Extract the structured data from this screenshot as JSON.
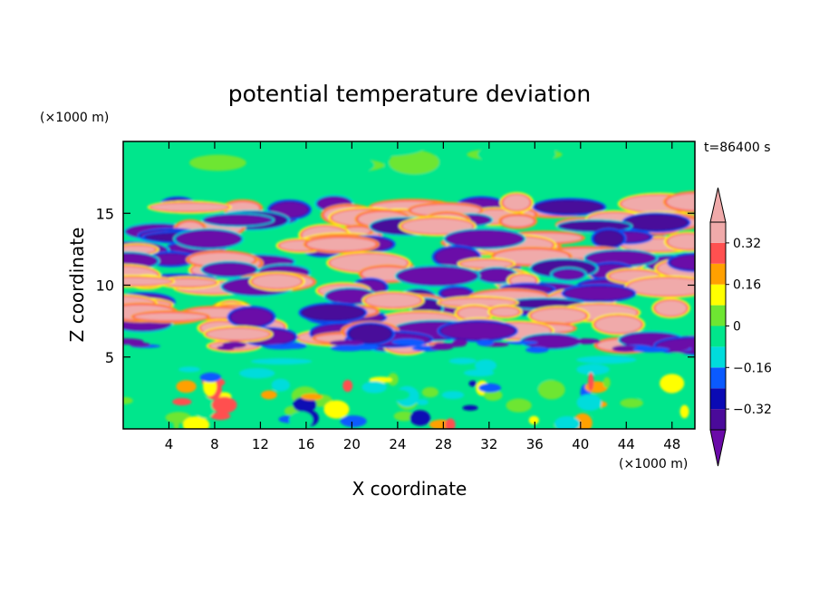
{
  "chart_data": {
    "type": "heatmap",
    "title": "potential temperature deviation",
    "xlabel": "X coordinate",
    "ylabel": "Z coordinate",
    "x_unit": "(×1000 m)",
    "y_unit": "(×1000 m)",
    "time_label": "t=86400 s",
    "xlim": [
      0,
      50
    ],
    "ylim": [
      0,
      20
    ],
    "x_ticks": [
      4,
      8,
      12,
      16,
      20,
      24,
      28,
      32,
      36,
      40,
      44,
      48
    ],
    "y_ticks": [
      5,
      10,
      15
    ],
    "colorbar": {
      "levels": [
        -0.4,
        -0.32,
        -0.24,
        -0.16,
        -0.08,
        0,
        0.08,
        0.16,
        0.24,
        0.32,
        0.4
      ],
      "tick_values": [
        0.32,
        0.16,
        0,
        -0.16,
        -0.32
      ],
      "tick_labels": [
        "0.32",
        "0.16",
        "0",
        "−0.16",
        "−0.32"
      ],
      "colors": [
        "#6a0aa8",
        "#4a0a9a",
        "#0a0ab4",
        "#0a5aff",
        "#00dcdc",
        "#00e68c",
        "#6ee632",
        "#ffff00",
        "#ffa000",
        "#ff5050",
        "#f0aaaa"
      ],
      "extend": "both"
    },
    "bands": [
      {
        "z_from": 0,
        "z_to": 5.5,
        "pattern": "mixed low-level convection, mostly green/yellow/cyan"
      },
      {
        "z_from": 5.5,
        "z_to": 16,
        "pattern": "alternating purple and pink layers"
      },
      {
        "z_from": 16,
        "z_to": 20,
        "pattern": "mostly green, near zero"
      }
    ]
  }
}
